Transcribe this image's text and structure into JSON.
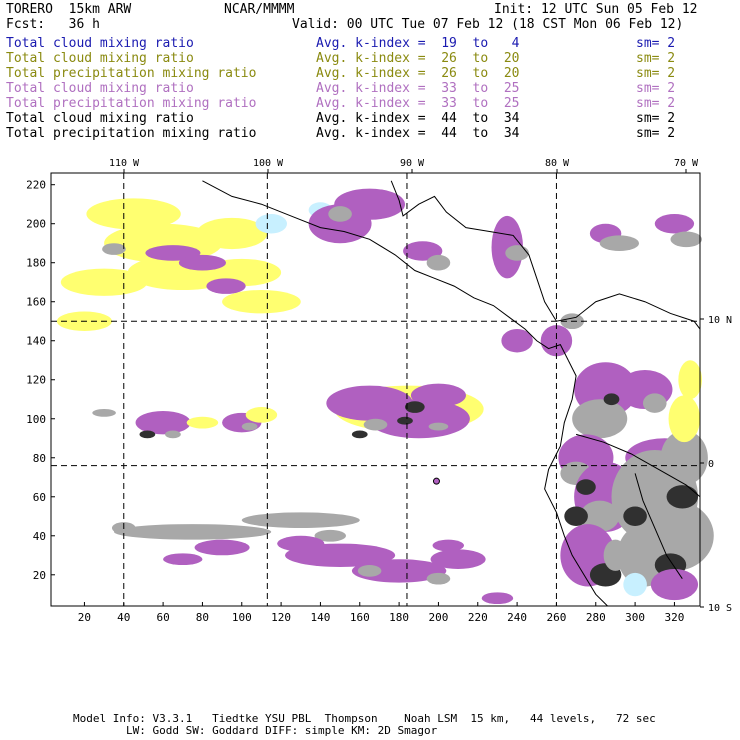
{
  "header": {
    "model": "TORERO  15km ARW",
    "org": "NCAR/MMMM",
    "init": "Init: 12 UTC Sun 05 Feb 12",
    "fcst": "Fcst:   36 h",
    "valid": "Valid: 00 UTC Tue 07 Feb 12 (18 CST Mon 06 Feb 12)"
  },
  "legend": [
    {
      "field": "Total cloud mixing ratio",
      "kidx": "Avg. k-index =  19  to   4",
      "sm": "sm= 2",
      "color": "#1a1ab0"
    },
    {
      "field": "Total cloud mixing ratio",
      "kidx": "Avg. k-index =  26  to  20",
      "sm": "sm= 2",
      "color": "#8a8a10"
    },
    {
      "field": "Total precipitation mixing ratio",
      "kidx": "Avg. k-index =  26  to  20",
      "sm": "sm= 2",
      "color": "#8a8a10"
    },
    {
      "field": "Total cloud mixing ratio",
      "kidx": "Avg. k-index =  33  to  25",
      "sm": "sm= 2",
      "color": "#b070c0"
    },
    {
      "field": "Total precipitation mixing ratio",
      "kidx": "Avg. k-index =  33  to  25",
      "sm": "sm= 2",
      "color": "#b070c0"
    },
    {
      "field": "Total cloud mixing ratio",
      "kidx": "Avg. k-index =  44  to  34",
      "sm": "sm= 2",
      "color": "#000000"
    },
    {
      "field": "Total precipitation mixing ratio",
      "kidx": "Avg. k-index =  44  to  34",
      "sm": "sm= 2",
      "color": "#000000"
    }
  ],
  "map": {
    "lon_labels": [
      "110 W",
      "100 W",
      "90 W",
      "80 W",
      "70 W"
    ],
    "lat_labels": [
      "10 N",
      "0",
      "10 S"
    ],
    "grid_x_ticks": [
      "20",
      "40",
      "60",
      "80",
      "100",
      "120",
      "140",
      "160",
      "180",
      "200",
      "220",
      "240",
      "260",
      "280",
      "300",
      "320"
    ],
    "grid_y_ticks": [
      "20",
      "40",
      "60",
      "80",
      "100",
      "120",
      "140",
      "160",
      "180",
      "200",
      "220"
    ],
    "colors": {
      "yellow": "#ffff70",
      "lightblue": "#c8f0ff",
      "magenta": "#b060c0",
      "gray": "#a8a8a8",
      "dark": "#303030",
      "frame": "#000000"
    }
  },
  "footer": {
    "line1": "Model Info: V3.3.1   Tiedtke YSU PBL  Thompson    Noah LSM  15 km,   44 levels,   72 sec",
    "line2": "LW: Godd SW: Goddard DIFF: simple KM: 2D Smagor"
  }
}
